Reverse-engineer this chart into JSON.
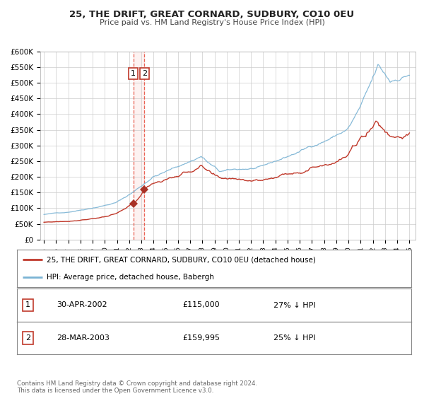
{
  "title": "25, THE DRIFT, GREAT CORNARD, SUDBURY, CO10 0EU",
  "subtitle": "Price paid vs. HM Land Registry's House Price Index (HPI)",
  "ylim": [
    0,
    600000
  ],
  "yticks": [
    0,
    50000,
    100000,
    150000,
    200000,
    250000,
    300000,
    350000,
    400000,
    450000,
    500000,
    550000,
    600000
  ],
  "ytick_labels": [
    "£0",
    "£50K",
    "£100K",
    "£150K",
    "£200K",
    "£250K",
    "£300K",
    "£350K",
    "£400K",
    "£450K",
    "£500K",
    "£550K",
    "£600K"
  ],
  "xlim_start": 1994.7,
  "xlim_end": 2025.5,
  "xtick_years": [
    1995,
    1996,
    1997,
    1998,
    1999,
    2000,
    2001,
    2002,
    2003,
    2004,
    2005,
    2006,
    2007,
    2008,
    2009,
    2010,
    2011,
    2012,
    2013,
    2014,
    2015,
    2016,
    2017,
    2018,
    2019,
    2020,
    2021,
    2022,
    2023,
    2024,
    2025
  ],
  "hpi_color": "#7ab3d4",
  "price_color": "#c0392b",
  "marker_color": "#a93226",
  "vline_color": "#e74c3c",
  "sale1_x": 2002.33,
  "sale1_y": 115000,
  "sale2_x": 2003.24,
  "sale2_y": 159995,
  "legend_price_label": "25, THE DRIFT, GREAT CORNARD, SUDBURY, CO10 0EU (detached house)",
  "legend_hpi_label": "HPI: Average price, detached house, Babergh",
  "table_rows": [
    {
      "num": "1",
      "date": "30-APR-2002",
      "price": "£115,000",
      "hpi": "27% ↓ HPI"
    },
    {
      "num": "2",
      "date": "28-MAR-2003",
      "price": "£159,995",
      "hpi": "25% ↓ HPI"
    }
  ],
  "footer": "Contains HM Land Registry data © Crown copyright and database right 2024.\nThis data is licensed under the Open Government Licence v3.0.",
  "background_color": "#ffffff",
  "grid_color": "#cccccc"
}
